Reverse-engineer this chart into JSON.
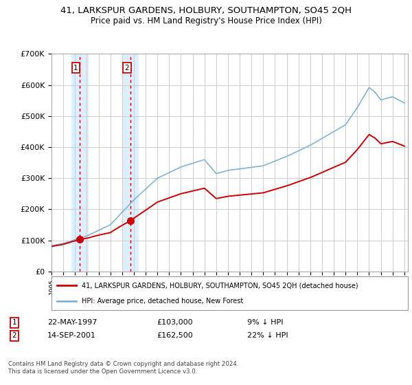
{
  "title": "41, LARKSPUR GARDENS, HOLBURY, SOUTHAMPTON, SO45 2QH",
  "subtitle": "Price paid vs. HM Land Registry's House Price Index (HPI)",
  "ylim": [
    0,
    700000
  ],
  "yticks": [
    0,
    100000,
    200000,
    300000,
    400000,
    500000,
    600000,
    700000
  ],
  "ytick_labels": [
    "£0",
    "£100K",
    "£200K",
    "£300K",
    "£400K",
    "£500K",
    "£600K",
    "£700K"
  ],
  "sale1_date": 1997.37,
  "sale1_price": 103000,
  "sale1_label": "22-MAY-1997",
  "sale1_amount": "£103,000",
  "sale1_pct": "9% ↓ HPI",
  "sale2_date": 2001.71,
  "sale2_price": 162500,
  "sale2_label": "14-SEP-2001",
  "sale2_amount": "£162,500",
  "sale2_pct": "22% ↓ HPI",
  "legend1": "41, LARKSPUR GARDENS, HOLBURY, SOUTHAMPTON, SO45 2QH (detached house)",
  "legend2": "HPI: Average price, detached house, New Forest",
  "footnote": "Contains HM Land Registry data © Crown copyright and database right 2024.\nThis data is licensed under the Open Government Licence v3.0.",
  "sale_color": "#cc0000",
  "hpi_color": "#7fb3d3",
  "background_color": "#ffffff",
  "grid_color": "#cccccc",
  "shade_color": "#ddeeff"
}
